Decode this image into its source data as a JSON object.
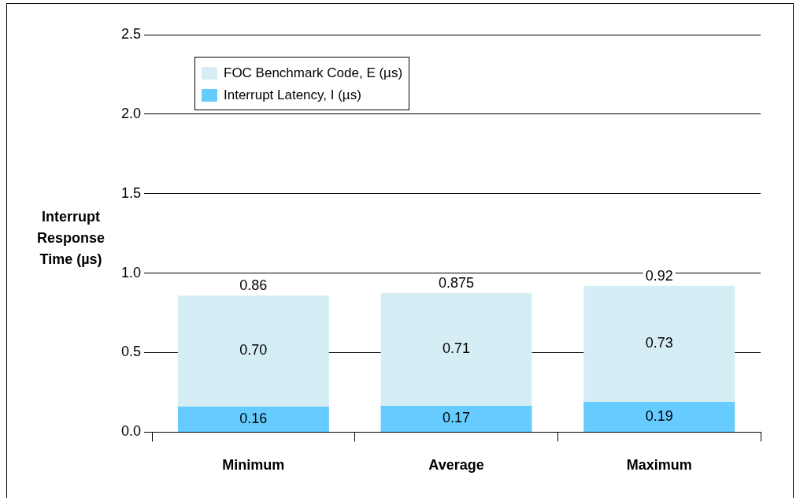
{
  "chart_data": {
    "type": "bar",
    "ylabel": "Interrupt Response Time (µs)",
    "categories": [
      "Minimum",
      "Average",
      "Maximum"
    ],
    "stacked": true,
    "series": [
      {
        "name": "Interrupt Latency, I (µs)",
        "color": "#66ccff",
        "values": [
          0.16,
          0.165,
          0.19
        ],
        "value_labels": [
          "0.16",
          "0.17",
          "0.19"
        ]
      },
      {
        "name": "FOC Benchmark Code, E (µs)",
        "color": "#d5eef5",
        "values": [
          0.7,
          0.71,
          0.73
        ],
        "value_labels": [
          "0.70",
          "0.71",
          "0.73"
        ]
      }
    ],
    "totals": [
      "0.86",
      "0.875",
      "0.92"
    ],
    "ylim": [
      0,
      2.5
    ],
    "yticks": [
      {
        "value": 0,
        "label": "0.0"
      },
      {
        "value": 0.5,
        "label": "0.5"
      },
      {
        "value": 1,
        "label": "1.0"
      },
      {
        "value": 1.5,
        "label": "1.5"
      },
      {
        "value": 2,
        "label": "2.0"
      },
      {
        "value": 2.5,
        "label": "2.5"
      }
    ],
    "grid": "y",
    "legend": "top left"
  }
}
